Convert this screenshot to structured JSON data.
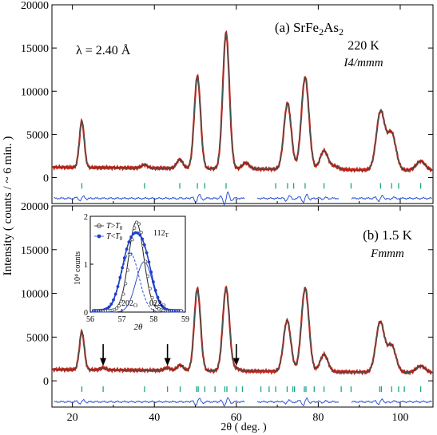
{
  "figure": {
    "ylabel": "Intensity   ( counts / ~ 6 min. )",
    "xlabel": "2θ   ( deg. )",
    "colors": {
      "obs": "#c0281e",
      "calc": "#111111",
      "diff": "#2f55d4",
      "ticks": "#1aa68a",
      "inset_obs": "#1e3fc8"
    }
  },
  "chart_data": [
    {
      "type": "line",
      "panel": "a",
      "label": "(a) SrFe2As2",
      "temperature": "220 K",
      "space_group": "I4/mmm",
      "wavelength": "λ = 2.40 Å",
      "xlim": [
        15,
        108
      ],
      "ylim": [
        -3000,
        20000
      ],
      "yticks": [
        0,
        5000,
        10000,
        15000,
        20000
      ],
      "baseline": 1200,
      "peaks": [
        {
          "x": 22.3,
          "y": 6500
        },
        {
          "x": 37.6,
          "y": 1500
        },
        {
          "x": 46.2,
          "y": 2100
        },
        {
          "x": 50.5,
          "y": 11700
        },
        {
          "x": 57.5,
          "y": 16700
        },
        {
          "x": 62.3,
          "y": 1700
        },
        {
          "x": 72.5,
          "y": 8600
        },
        {
          "x": 76.8,
          "y": 11600
        },
        {
          "x": 81.4,
          "y": 3100
        },
        {
          "x": 84.0,
          "y": 1300
        },
        {
          "x": 95.2,
          "y": 7600
        },
        {
          "x": 97.9,
          "y": 5100
        },
        {
          "x": 105.0,
          "y": 1900
        }
      ],
      "bragg_ticks": [
        22.3,
        37.6,
        46.2,
        50.5,
        52.3,
        57.5,
        69.6,
        72.5,
        74.0,
        76.8,
        81.4,
        88.0,
        95.2,
        97.9,
        99.6,
        105.0
      ],
      "tick_level": -1000,
      "diff_level": -2400,
      "diff_gaps": [
        [
          62,
          65
        ],
        [
          85,
          88
        ]
      ]
    },
    {
      "type": "line",
      "panel": "b",
      "label": "(b) 1.5 K",
      "space_group": "Fmmm",
      "xlim": [
        15,
        108
      ],
      "ylim": [
        -3000,
        20000
      ],
      "yticks": [
        0,
        5000,
        10000,
        15000,
        20000
      ],
      "baseline": 1300,
      "peaks": [
        {
          "x": 22.3,
          "y": 5600
        },
        {
          "x": 27.5,
          "y": 1500
        },
        {
          "x": 43.2,
          "y": 1500
        },
        {
          "x": 46.3,
          "y": 1800
        },
        {
          "x": 50.5,
          "y": 10500
        },
        {
          "x": 57.5,
          "y": 10600
        },
        {
          "x": 60.0,
          "y": 1400
        },
        {
          "x": 72.4,
          "y": 6900
        },
        {
          "x": 76.8,
          "y": 10600
        },
        {
          "x": 81.4,
          "y": 3000
        },
        {
          "x": 95.1,
          "y": 6700
        },
        {
          "x": 97.9,
          "y": 4000
        },
        {
          "x": 105.0,
          "y": 1700
        }
      ],
      "arrows": [
        27.5,
        43.2,
        60.0
      ],
      "bragg_ticks": [
        22.3,
        27.5,
        37.6,
        43.2,
        46.3,
        50.3,
        50.7,
        52.3,
        54.8,
        57.2,
        57.7,
        60.0,
        61.5,
        66.0,
        68.0,
        69.6,
        72.4,
        73.8,
        74.2,
        76.6,
        77.0,
        79.0,
        81.4,
        85.6,
        88.0,
        95.0,
        95.4,
        97.9,
        99.6,
        101.0,
        105.0
      ],
      "tick_level": -1000,
      "diff_level": -2400,
      "diff_gaps": [
        [
          62,
          65
        ],
        [
          85,
          88
        ]
      ],
      "xticks": [
        20,
        40,
        60,
        80,
        100
      ]
    },
    {
      "type": "line",
      "panel": "inset",
      "xlabel": "2θ",
      "ylabel": "10⁴ counts",
      "xlim": [
        56,
        59
      ],
      "ylim": [
        0,
        2
      ],
      "xticks": [
        56,
        57,
        58,
        59
      ],
      "yticks": [
        0,
        1,
        2
      ],
      "legend": [
        "T>T0",
        "T<T0"
      ],
      "annotations": [
        "202O",
        "022O",
        "112T"
      ],
      "series": [
        {
          "name": "T>T0",
          "center": 57.45,
          "amplitude": 1.85,
          "width": 0.24
        },
        {
          "name": "T<T0",
          "components": [
            {
              "center": 57.25,
              "amplitude": 1.25,
              "width": 0.28
            },
            {
              "center": 57.7,
              "amplitude": 1.05,
              "width": 0.26
            }
          ]
        }
      ]
    }
  ]
}
